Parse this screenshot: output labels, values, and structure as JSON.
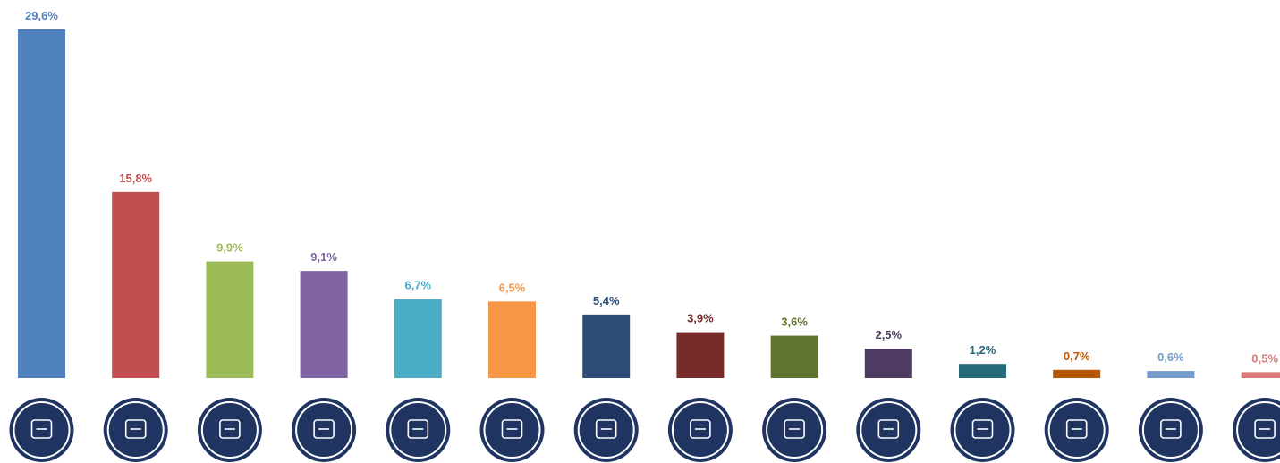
{
  "chart_data": {
    "type": "bar",
    "categories": [
      null,
      null,
      null,
      null,
      null,
      null,
      null,
      null,
      null,
      null,
      null,
      null,
      null,
      null
    ],
    "values": [
      29.6,
      15.8,
      9.9,
      9.1,
      6.7,
      6.5,
      5.4,
      3.9,
      3.6,
      2.5,
      1.2,
      0.7,
      0.6,
      0.5
    ],
    "value_labels": [
      "29,6%",
      "15,8%",
      "9,9%",
      "9,1%",
      "6,7%",
      "6,5%",
      "5,4%",
      "3,9%",
      "3,6%",
      "2,5%",
      "1,2%",
      "0,7%",
      "0,6%",
      "0,5%"
    ],
    "colors": [
      "#4f81bd",
      "#c0504d",
      "#9bbb59",
      "#8064a2",
      "#4bacc6",
      "#f79646",
      "#2c4d75",
      "#772c2a",
      "#5f7530",
      "#4d3b62",
      "#276a7c",
      "#b65708",
      "#729aca",
      "#d47a78"
    ]
  }
}
